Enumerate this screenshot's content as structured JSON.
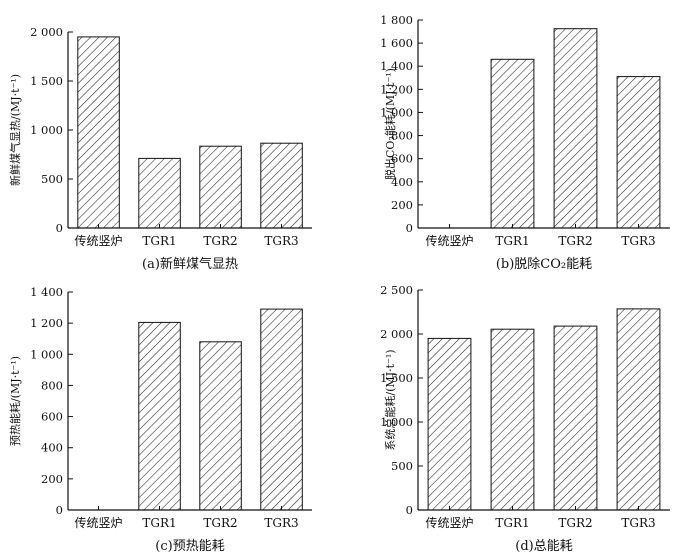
{
  "chart_data": [
    {
      "type": "bar",
      "caption": "(a)新鲜煤气显热",
      "ylabel": "新鲜煤气显热/(MJ·t⁻¹)",
      "categories": [
        "传统竖炉",
        "TGR1",
        "TGR2",
        "TGR3"
      ],
      "values": [
        1950,
        710,
        835,
        865
      ],
      "ylim": [
        0,
        2000
      ],
      "yticks": [
        0,
        500,
        1000,
        1500,
        2000
      ],
      "yticklabels": [
        "0",
        "500",
        "1 000",
        "1 500",
        "2 000"
      ]
    },
    {
      "type": "bar",
      "caption": "(b)脱除CO₂能耗",
      "ylabel": "脱出CO₂能耗/(MJ·t⁻¹)",
      "categories": [
        "传统竖炉",
        "TGR1",
        "TGR2",
        "TGR3"
      ],
      "values": [
        0,
        1460,
        1725,
        1310
      ],
      "ylim": [
        0,
        1800
      ],
      "yticks": [
        0,
        200,
        400,
        600,
        800,
        1000,
        1200,
        1400,
        1600,
        1800
      ],
      "yticklabels": [
        "0",
        "200",
        "400",
        "600",
        "800",
        "1 000",
        "1 200",
        "1 400",
        "1 600",
        "1 800"
      ]
    },
    {
      "type": "bar",
      "caption": "(c)预热能耗",
      "ylabel": "预热能耗/(MJ·t⁻¹)",
      "categories": [
        "传统竖炉",
        "TGR1",
        "TGR2",
        "TGR3"
      ],
      "values": [
        0,
        1205,
        1080,
        1290
      ],
      "ylim": [
        0,
        1400
      ],
      "yticks": [
        0,
        200,
        400,
        600,
        800,
        1000,
        1200,
        1400
      ],
      "yticklabels": [
        "0",
        "200",
        "400",
        "600",
        "800",
        "1 000",
        "1 200",
        "1 400"
      ]
    },
    {
      "type": "bar",
      "caption": "(d)总能耗",
      "ylabel": "系统总能耗/(MJ·t⁻¹)",
      "categories": [
        "传统竖炉",
        "TGR1",
        "TGR2",
        "TGR3"
      ],
      "values": [
        1950,
        2055,
        2090,
        2285
      ],
      "ylim": [
        0,
        2500
      ],
      "yticks": [
        0,
        500,
        1000,
        1500,
        2000,
        2500
      ],
      "yticklabels": [
        "0",
        "500",
        "1 000",
        "1 500",
        "2 000",
        "2 500"
      ]
    }
  ],
  "colors": {
    "bar_fill": "#ffffff",
    "hatch": "#222222",
    "axis": "#111111"
  }
}
